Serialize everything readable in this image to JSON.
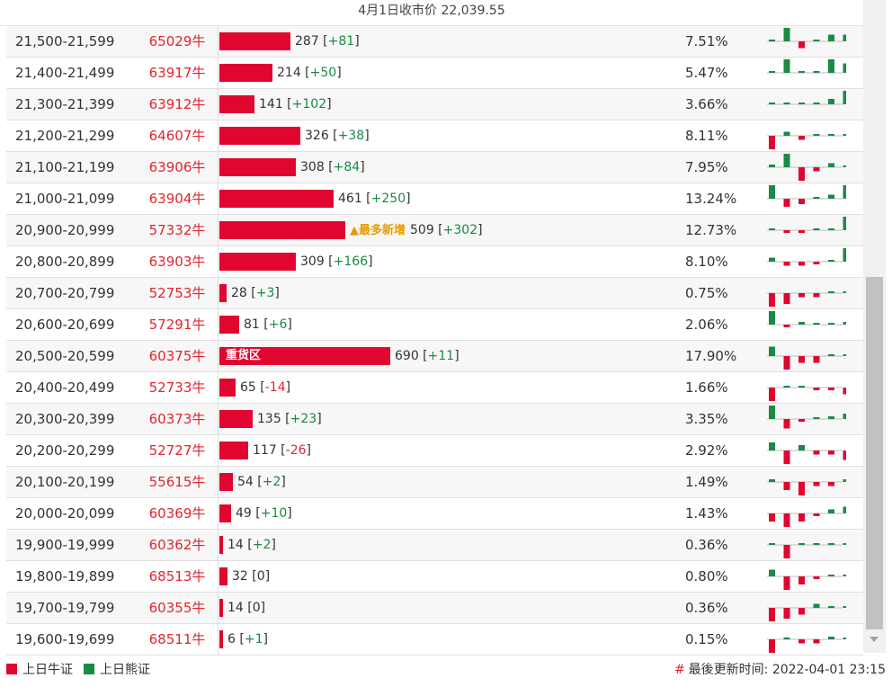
{
  "header": {
    "title": "4月1日收市价 22,039.55"
  },
  "colors": {
    "bull": "#e0062f",
    "bear": "#1a8a45",
    "highlight": "#e89a00"
  },
  "rows": [
    {
      "range": "21,500-21,599",
      "code": "65029牛",
      "bar_fraction": 0.416,
      "count": "287",
      "change": "+81",
      "pct": "7.51%",
      "label": "",
      "spark": [
        0,
        1,
        -0.5,
        0,
        0.5,
        0.5
      ]
    },
    {
      "range": "21,400-21,499",
      "code": "63917牛",
      "bar_fraction": 0.31,
      "count": "214",
      "change": "+50",
      "pct": "5.47%",
      "label": "",
      "spark": [
        0,
        1,
        0,
        0,
        1,
        0.7
      ]
    },
    {
      "range": "21,300-21,399",
      "code": "63912牛",
      "bar_fraction": 0.204,
      "count": "141",
      "change": "+102",
      "pct": "3.66%",
      "label": "",
      "spark": [
        0,
        0,
        0,
        0,
        0.4,
        1
      ]
    },
    {
      "range": "21,200-21,299",
      "code": "64607牛",
      "bar_fraction": 0.472,
      "count": "326",
      "change": "+38",
      "pct": "8.11%",
      "label": "",
      "spark": [
        -1,
        0.3,
        -0.3,
        0,
        0,
        0
      ]
    },
    {
      "range": "21,100-21,199",
      "code": "63906牛",
      "bar_fraction": 0.446,
      "count": "308",
      "change": "+84",
      "pct": "7.95%",
      "label": "",
      "spark": [
        0.2,
        1,
        -1,
        -0.3,
        0.3,
        0
      ]
    },
    {
      "range": "21,000-21,099",
      "code": "63904牛",
      "bar_fraction": 0.668,
      "count": "461",
      "change": "+250",
      "pct": "13.24%",
      "label": "",
      "spark": [
        1,
        -0.6,
        -0.4,
        0,
        0.3,
        1
      ]
    },
    {
      "range": "20,900-20,999",
      "code": "57332牛",
      "bar_fraction": 0.737,
      "count": "509",
      "change": "+302",
      "pct": "12.73%",
      "label": "",
      "most": "▲最多新增",
      "spark": [
        0,
        -0.2,
        -0.2,
        0,
        0,
        1
      ]
    },
    {
      "range": "20,800-20,899",
      "code": "63903牛",
      "bar_fraction": 0.447,
      "count": "309",
      "change": "+166",
      "pct": "8.10%",
      "label": "",
      "spark": [
        0.3,
        -0.3,
        -0.3,
        -0.2,
        0,
        1
      ]
    },
    {
      "range": "20,700-20,799",
      "code": "52753牛",
      "bar_fraction": 0.04,
      "count": "28",
      "change": "+3",
      "pct": "0.75%",
      "label": "",
      "spark": [
        -1,
        -0.8,
        -0.3,
        -0.3,
        0,
        0.1
      ]
    },
    {
      "range": "20,600-20,699",
      "code": "57291牛",
      "bar_fraction": 0.117,
      "count": "81",
      "change": "+6",
      "pct": "2.06%",
      "label": "",
      "spark": [
        1,
        -0.2,
        0.2,
        0,
        0,
        0.2
      ]
    },
    {
      "range": "20,500-20,599",
      "code": "60375牛",
      "bar_fraction": 1.0,
      "count": "690",
      "change": "+11",
      "pct": "17.90%",
      "label": "重货区",
      "spark": [
        0.7,
        -1,
        -0.5,
        -0.5,
        0,
        0
      ]
    },
    {
      "range": "20,400-20,499",
      "code": "52733牛",
      "bar_fraction": 0.094,
      "count": "65",
      "change": "-14",
      "pct": "1.66%",
      "label": "",
      "spark": [
        -1,
        0,
        0,
        -0.2,
        -0.2,
        -0.5
      ]
    },
    {
      "range": "20,300-20,399",
      "code": "60373牛",
      "bar_fraction": 0.196,
      "count": "135",
      "change": "+23",
      "pct": "3.35%",
      "label": "",
      "spark": [
        1,
        -0.7,
        -0.2,
        0,
        0.2,
        0.4
      ]
    },
    {
      "range": "20,200-20,299",
      "code": "52727牛",
      "bar_fraction": 0.17,
      "count": "117",
      "change": "-26",
      "pct": "2.92%",
      "label": "",
      "spark": [
        0.6,
        -1,
        0.4,
        -0.3,
        -0.3,
        -0.7
      ]
    },
    {
      "range": "20,100-20,199",
      "code": "55615牛",
      "bar_fraction": 0.078,
      "count": "54",
      "change": "+2",
      "pct": "1.49%",
      "label": "",
      "spark": [
        0.2,
        -0.6,
        -1,
        -0.3,
        -0.3,
        0.2
      ]
    },
    {
      "range": "20,000-20,099",
      "code": "60369牛",
      "bar_fraction": 0.071,
      "count": "49",
      "change": "+10",
      "pct": "1.43%",
      "label": "",
      "spark": [
        -0.6,
        -1,
        -0.6,
        -0.2,
        0.3,
        0.5
      ]
    },
    {
      "range": "19,900-19,999",
      "code": "60362牛",
      "bar_fraction": 0.02,
      "count": "14",
      "change": "+2",
      "pct": "0.36%",
      "label": "",
      "spark": [
        0.1,
        -1,
        0.1,
        0.1,
        0.1,
        0.1
      ]
    },
    {
      "range": "19,800-19,899",
      "code": "68513牛",
      "bar_fraction": 0.046,
      "count": "32",
      "change": "0",
      "pct": "0.80%",
      "label": "",
      "spark": [
        0.5,
        -1,
        -0.6,
        -0.2,
        0,
        0
      ]
    },
    {
      "range": "19,700-19,799",
      "code": "60355牛",
      "bar_fraction": 0.02,
      "count": "14",
      "change": "0",
      "pct": "0.36%",
      "label": "",
      "spark": [
        -1,
        -0.8,
        -0.5,
        0.3,
        0,
        0
      ]
    },
    {
      "range": "19,600-19,699",
      "code": "68511牛",
      "bar_fraction": 0.009,
      "count": "6",
      "change": "+1",
      "pct": "0.15%",
      "label": "",
      "spark": [
        -1,
        0,
        -0.3,
        -0.3,
        0.2,
        0
      ]
    }
  ],
  "footer": {
    "legend_bull": "上日牛证",
    "legend_bear": "上日熊证",
    "update_prefix": "#",
    "update_text": "最後更新时间: 2022-04-01 23:15"
  }
}
